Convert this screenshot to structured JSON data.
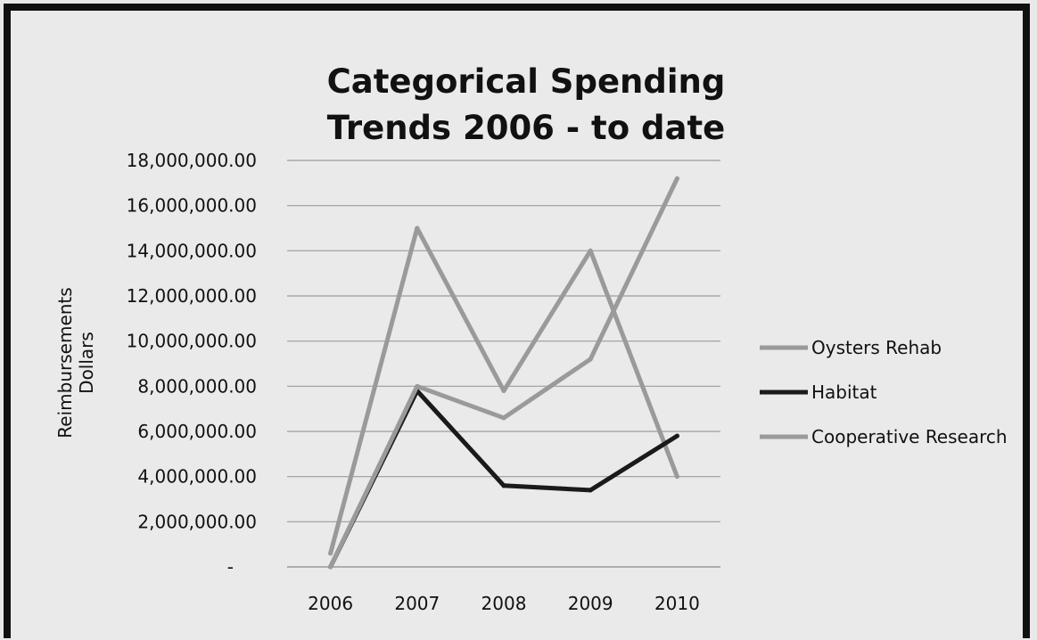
{
  "chart_data": {
    "type": "line",
    "title": [
      "Categorical Spending",
      "Trends 2006 - to date"
    ],
    "ylabel": [
      "Reimbursements",
      "Dollars"
    ],
    "xlabel": "",
    "categories": [
      "2006",
      "2007",
      "2008",
      "2009",
      "2010"
    ],
    "ylim": [
      0,
      18000000
    ],
    "yticks": [
      {
        "value": 0,
        "label": "-"
      },
      {
        "value": 2000000,
        "label": "2,000,000.00"
      },
      {
        "value": 4000000,
        "label": "4,000,000.00"
      },
      {
        "value": 6000000,
        "label": "6,000,000.00"
      },
      {
        "value": 8000000,
        "label": "8,000,000.00"
      },
      {
        "value": 10000000,
        "label": "10,000,000.00"
      },
      {
        "value": 12000000,
        "label": "12,000,000.00"
      },
      {
        "value": 14000000,
        "label": "14,000,000.00"
      },
      {
        "value": 16000000,
        "label": "16,000,000.00"
      },
      {
        "value": 18000000,
        "label": "18,000,000.00"
      }
    ],
    "grid": true,
    "legend_position": "right",
    "series": [
      {
        "name": "Oysters Rehab",
        "values": [
          600000,
          15000000,
          7800000,
          14000000,
          4000000
        ],
        "color": "#9a9a9a"
      },
      {
        "name": "Habitat",
        "values": [
          0,
          7800000,
          3600000,
          3400000,
          5800000
        ],
        "color": "#1a1a1a"
      },
      {
        "name": "Cooperative Research",
        "values": [
          0,
          8000000,
          6600000,
          9200000,
          17200000
        ],
        "color": "#9a9a9a"
      }
    ]
  }
}
